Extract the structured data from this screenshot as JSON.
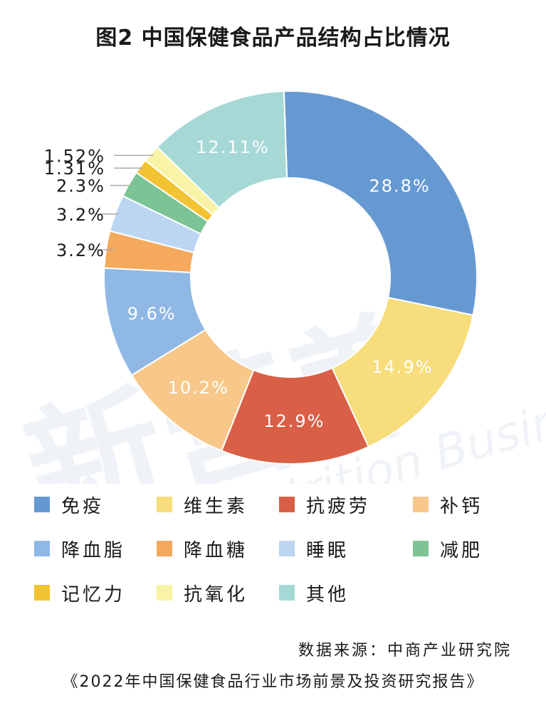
{
  "chart_data": {
    "type": "pie",
    "title": "图2 中国保健食品产品结构占比情况",
    "slices": [
      {
        "name": "免疫",
        "value": 28.8,
        "label": "28.8%",
        "color": "#6699d2"
      },
      {
        "name": "维生素",
        "value": 14.9,
        "label": "14.9%",
        "color": "#f7dd7c"
      },
      {
        "name": "抗疲劳",
        "value": 12.9,
        "label": "12.9%",
        "color": "#d95f46"
      },
      {
        "name": "补钙",
        "value": 10.2,
        "label": "10.2%",
        "color": "#f7c88a"
      },
      {
        "name": "降血脂",
        "value": 9.6,
        "label": "9.6%",
        "color": "#90b8e5"
      },
      {
        "name": "降血糖",
        "value": 3.2,
        "label": "3.2%",
        "color": "#f4a95c"
      },
      {
        "name": "睡眠",
        "value": 3.2,
        "label": "3.2%",
        "color": "#bcd6f1"
      },
      {
        "name": "减肥",
        "value": 2.3,
        "label": "2.3%",
        "color": "#7cc495"
      },
      {
        "name": "记忆力",
        "value": 1.31,
        "label": "1.31%",
        "color": "#f2c332"
      },
      {
        "name": "抗氧化",
        "value": 1.52,
        "label": "1.52%",
        "color": "#f8f3a6"
      },
      {
        "name": "其他",
        "value": 12.11,
        "label": "12.11%",
        "color": "#a6d8d6"
      }
    ],
    "legend_position": "bottom",
    "source": "数据来源：中商产业研究院",
    "report": "《2022年中国保健食品行业市场前景及投资研究报告》"
  }
}
